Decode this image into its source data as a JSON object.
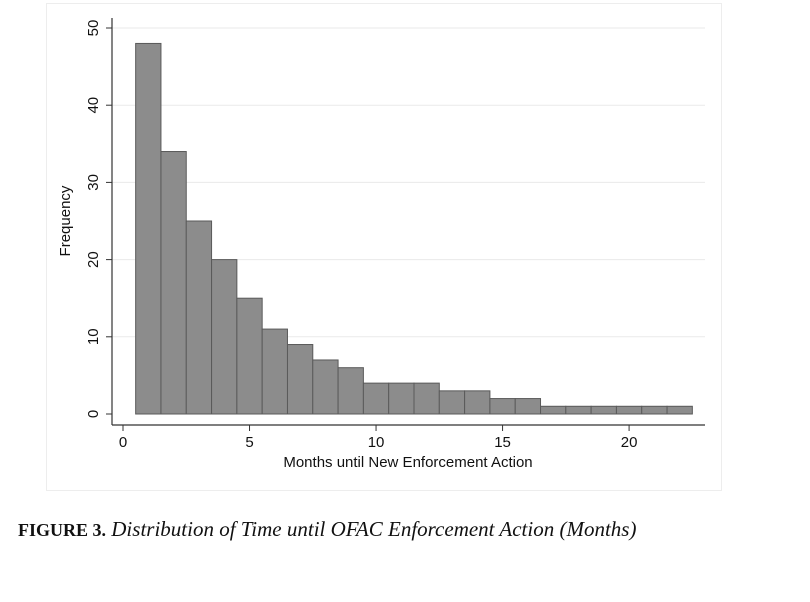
{
  "caption": {
    "label": "FIGURE 3.",
    "title": "Distribution of Time until OFAC Enforcement Action (Months)"
  },
  "colors": {
    "bar_fill": "#8c8c8c",
    "bar_stroke": "#5a5a5a",
    "grid": "#eaeaea",
    "axis": "#333333"
  },
  "chart_data": {
    "type": "bar",
    "subtype": "histogram",
    "xlabel": "Months until New Enforcement Action",
    "ylabel": "Frequency",
    "xlim": [
      0,
      23
    ],
    "ylim": [
      0,
      50
    ],
    "xticks": [
      0,
      5,
      10,
      15,
      20
    ],
    "yticks": [
      0,
      10,
      20,
      30,
      40,
      50
    ],
    "grid": true,
    "bins": [
      {
        "start": 0.5,
        "end": 1.5,
        "value": 48
      },
      {
        "start": 1.5,
        "end": 2.5,
        "value": 34
      },
      {
        "start": 2.5,
        "end": 3.5,
        "value": 25
      },
      {
        "start": 3.5,
        "end": 4.5,
        "value": 20
      },
      {
        "start": 4.5,
        "end": 5.5,
        "value": 15
      },
      {
        "start": 5.5,
        "end": 6.5,
        "value": 11
      },
      {
        "start": 6.5,
        "end": 7.5,
        "value": 9
      },
      {
        "start": 7.5,
        "end": 8.5,
        "value": 7
      },
      {
        "start": 8.5,
        "end": 9.5,
        "value": 6
      },
      {
        "start": 9.5,
        "end": 10.5,
        "value": 4
      },
      {
        "start": 10.5,
        "end": 11.5,
        "value": 4
      },
      {
        "start": 11.5,
        "end": 12.5,
        "value": 4
      },
      {
        "start": 12.5,
        "end": 13.5,
        "value": 3
      },
      {
        "start": 13.5,
        "end": 14.5,
        "value": 3
      },
      {
        "start": 14.5,
        "end": 15.5,
        "value": 2
      },
      {
        "start": 15.5,
        "end": 16.5,
        "value": 2
      },
      {
        "start": 16.5,
        "end": 17.5,
        "value": 1
      },
      {
        "start": 17.5,
        "end": 18.5,
        "value": 1
      },
      {
        "start": 18.5,
        "end": 19.5,
        "value": 1
      },
      {
        "start": 19.5,
        "end": 20.5,
        "value": 1
      },
      {
        "start": 20.5,
        "end": 21.5,
        "value": 1
      },
      {
        "start": 21.5,
        "end": 22.5,
        "value": 1
      }
    ]
  }
}
